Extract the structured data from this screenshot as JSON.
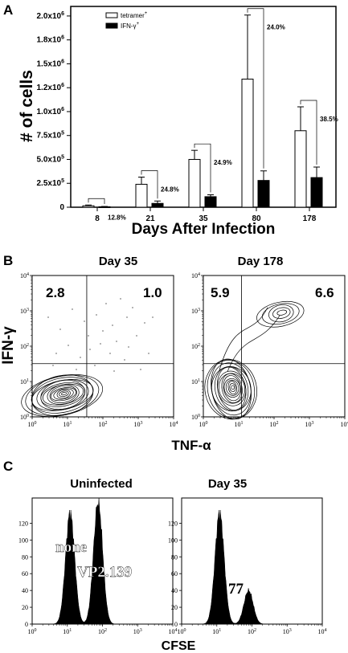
{
  "chart_data": [
    {
      "type": "bar",
      "panel_label": "A",
      "categories": [
        "8",
        "21",
        "35",
        "80",
        "178"
      ],
      "xlabel": "Days After Infection",
      "ylabel": "# of cells",
      "ylim": [
        0,
        2100000
      ],
      "yticks": [
        {
          "value": 0,
          "label": "0"
        },
        {
          "value": 250000,
          "label": "2.5x10",
          "exp": "5"
        },
        {
          "value": 500000,
          "label": "5.0x10",
          "exp": "5"
        },
        {
          "value": 750000,
          "label": "7.5x10",
          "exp": "5"
        },
        {
          "value": 1000000,
          "label": "1.0x10",
          "exp": "6"
        },
        {
          "value": 1250000,
          "label": "1.2x10",
          "exp": "6"
        },
        {
          "value": 1500000,
          "label": "1.5x10",
          "exp": "6"
        },
        {
          "value": 1750000,
          "label": "1.8x10",
          "exp": "6"
        },
        {
          "value": 2000000,
          "label": "2.0x10",
          "exp": "6"
        }
      ],
      "series": [
        {
          "name": "tetramer",
          "name_sup": "+",
          "color": "#ffffff",
          "values": [
            15000,
            240000,
            500000,
            1340000,
            800000
          ],
          "errors": [
            8000,
            75000,
            95000,
            670000,
            250000
          ]
        },
        {
          "name": "IFN-γ",
          "name_sup": "+",
          "color": "#000000",
          "values": [
            5000,
            40000,
            110000,
            280000,
            310000
          ],
          "errors": [
            3000,
            25000,
            20000,
            100000,
            110000
          ]
        }
      ],
      "annotations": [
        "12.8%",
        "24.8%",
        "24.9%",
        "24.0%",
        "38.5%"
      ],
      "legend_position": "top-left"
    },
    {
      "type": "scatter",
      "panel_label": "B",
      "subtype": "flow-cytometry contour plots",
      "xlabel": "TNF-α",
      "ylabel": "IFN-γ",
      "axis_scale": "log",
      "xlim": [
        1,
        10000
      ],
      "ylim": [
        1,
        10000
      ],
      "tick_exps": [
        "0",
        "1",
        "2",
        "3",
        "4"
      ],
      "panels": [
        {
          "title": "Day 35",
          "quadrants": {
            "upper_left": "2.8",
            "upper_right": "1.0"
          },
          "gate_x": 35,
          "gate_y": 32
        },
        {
          "title": "Day 178",
          "quadrants": {
            "upper_left": "5.9",
            "upper_right": "6.6"
          },
          "gate_x": 12,
          "gate_y": 32
        }
      ]
    },
    {
      "type": "area",
      "panel_label": "C",
      "subtype": "histograms",
      "xlabel": "CFSE",
      "axis_scale": "log-x",
      "xlim": [
        1,
        10000
      ],
      "ylim": [
        0,
        150
      ],
      "yticks": [
        0,
        20,
        40,
        60,
        80,
        100,
        120
      ],
      "panels": [
        {
          "title": "Uninfected",
          "labels": [
            "none",
            "VP2.139"
          ],
          "peaks": [
            {
              "x": 12,
              "y": 132
            },
            {
              "x": 75,
              "y": 145
            }
          ]
        },
        {
          "title": "Day 35",
          "labels": [
            "77"
          ],
          "peaks": [
            {
              "x": 12,
              "y": 132
            },
            {
              "x": 80,
              "y": 40
            }
          ]
        }
      ]
    }
  ]
}
